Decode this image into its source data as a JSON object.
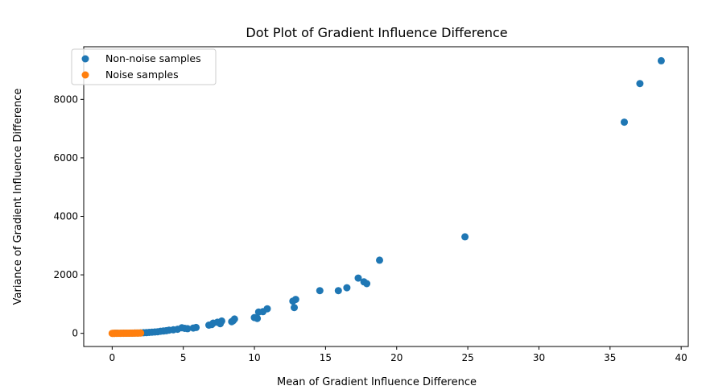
{
  "chart_data": {
    "type": "scatter",
    "title": "Dot Plot of Gradient Influence Difference",
    "xlabel": "Mean of Gradient Influence Difference",
    "ylabel": "Variance of Gradient Influence Difference",
    "xlim": [
      -2,
      40.5
    ],
    "ylim": [
      -450,
      9800
    ],
    "xticks": [
      0,
      5,
      10,
      15,
      20,
      25,
      30,
      35,
      40
    ],
    "yticks": [
      0,
      2000,
      4000,
      6000,
      8000
    ],
    "grid": false,
    "legend": "top-left",
    "series": [
      {
        "name": "Non-noise samples",
        "color": "#1f77b4",
        "x": [
          38.6,
          37.1,
          36.0,
          24.8,
          18.8,
          17.3,
          17.7,
          17.9,
          16.5,
          15.9,
          14.6,
          12.9,
          12.7,
          12.8,
          10.9,
          10.6,
          10.3,
          10.2,
          10.0,
          8.6,
          8.4,
          8.5,
          7.7,
          7.6,
          7.4,
          7.1,
          7.0,
          6.8,
          5.9,
          5.7,
          5.3,
          5.1,
          4.9,
          4.6,
          4.3,
          4.0,
          3.8,
          3.6,
          3.4,
          3.2,
          3.0,
          2.8,
          2.6,
          2.4,
          2.2,
          2.0,
          1.8,
          1.6,
          1.4,
          1.2,
          1.0,
          0.8,
          0.6,
          0.4,
          0.3,
          0.2
        ],
        "y": [
          9320,
          8540,
          7220,
          3300,
          2500,
          1890,
          1760,
          1700,
          1560,
          1460,
          1460,
          1160,
          1100,
          880,
          840,
          740,
          730,
          510,
          540,
          490,
          400,
          430,
          420,
          330,
          380,
          350,
          300,
          280,
          200,
          180,
          160,
          170,
          190,
          140,
          120,
          110,
          90,
          80,
          70,
          55,
          45,
          40,
          32,
          25,
          20,
          16,
          12,
          10,
          8,
          6,
          5,
          4,
          3,
          2,
          1,
          1
        ]
      },
      {
        "name": "Noise samples",
        "color": "#ff7f0e",
        "x": [
          0.0,
          0.05,
          0.1,
          0.15,
          0.2,
          0.3,
          0.4,
          0.5,
          0.6,
          0.7,
          0.8,
          0.9,
          1.0,
          1.1,
          1.2,
          1.3,
          1.4,
          1.5,
          1.6,
          1.7,
          1.8,
          1.9,
          2.0
        ],
        "y": [
          0,
          0,
          1,
          0,
          1,
          2,
          1,
          3,
          2,
          4,
          3,
          5,
          4,
          6,
          5,
          7,
          6,
          8,
          7,
          9,
          8,
          10,
          9
        ]
      }
    ]
  }
}
